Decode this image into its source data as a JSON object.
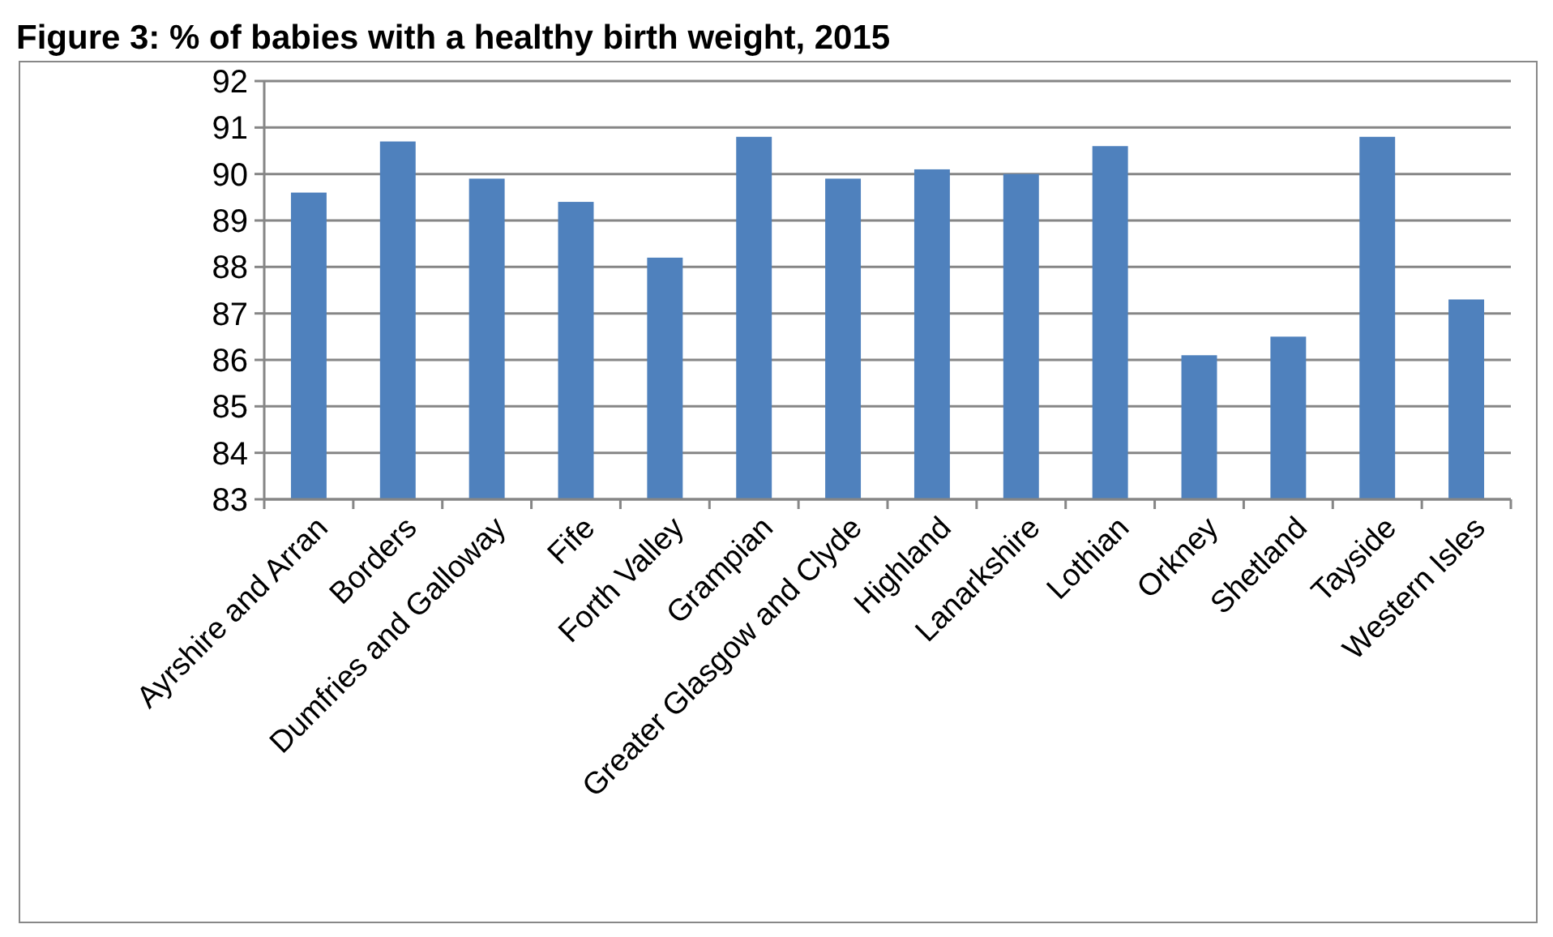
{
  "chart_data": {
    "type": "bar",
    "title": "Figure 3: % of babies with a healthy birth weight, 2015",
    "categories": [
      "Ayrshire and Arran",
      "Borders",
      "Dumfries and Galloway",
      "Fife",
      "Forth Valley",
      "Grampian",
      "Greater Glasgow and Clyde",
      "Highland",
      "Lanarkshire",
      "Lothian",
      "Orkney",
      "Shetland",
      "Tayside",
      "Western Isles"
    ],
    "values": [
      89.6,
      90.7,
      89.9,
      89.4,
      88.2,
      90.8,
      89.9,
      90.1,
      90.0,
      90.6,
      86.1,
      86.5,
      90.8,
      87.3
    ],
    "color": "#4f81bd",
    "ylim": [
      83,
      92
    ],
    "yticks": [
      83,
      84,
      85,
      86,
      87,
      88,
      89,
      90,
      91,
      92
    ],
    "grid": "y"
  }
}
